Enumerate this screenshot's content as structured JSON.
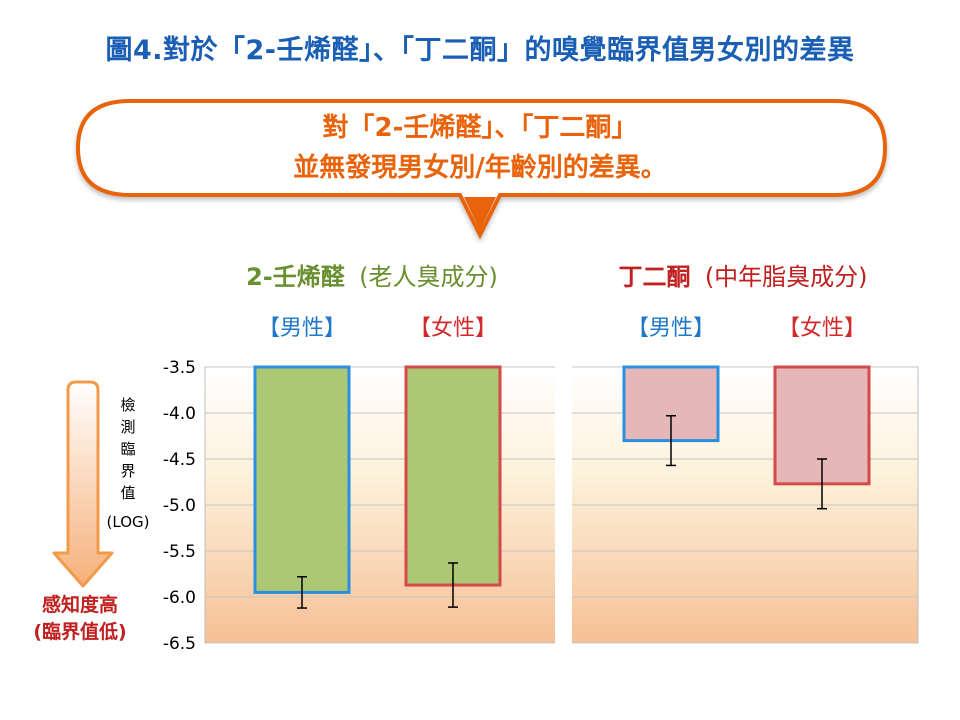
{
  "page": {
    "title": "圖4.對於「2-壬烯醛」、「丁二酮」的嗅覺臨界值男女別的差異"
  },
  "callout": {
    "line1": "對「2-壬烯醛」、「丁二酮」",
    "line2": "並無發現男女別/年齡別的差異。"
  },
  "colors": {
    "title": "#1a5fb4",
    "callout": "#e8630a",
    "nonenal": "#6a8f2e",
    "diacetyl": "#c0201f",
    "male_label": "#1f78c8",
    "female_label": "#d22a2a",
    "green_fill": "#adc874",
    "pink_fill": "#e5b7b8",
    "male_border": "#2a8fe0",
    "female_border": "#d44a4a"
  },
  "chart_data": {
    "type": "bar",
    "ylabel_chars": [
      "檢",
      "測",
      "臨",
      "界",
      "值"
    ],
    "ylabel_unit": "(LOG)",
    "ylim": [
      -6.5,
      -3.5
    ],
    "yticks": [
      -3.5,
      -4.0,
      -4.5,
      -5.0,
      -5.5,
      -6.0,
      -6.5
    ],
    "ytick_labels": [
      "-3.5",
      "-4.0",
      "-4.5",
      "-5.0",
      "-5.5",
      "-6.0",
      "-6.5"
    ],
    "grid": true,
    "sensitivity_label": [
      "感知度高",
      "(臨界值低)"
    ],
    "groups": [
      {
        "name": "2-壬烯醛",
        "subtitle": "(老人臭成分)",
        "bars": [
          {
            "label": "【男性】",
            "sex": "male",
            "value": -5.95,
            "err": 0.17
          },
          {
            "label": "【女性】",
            "sex": "female",
            "value": -5.87,
            "err": 0.24
          }
        ]
      },
      {
        "name": "丁二酮",
        "subtitle": "(中年脂臭成分)",
        "bars": [
          {
            "label": "【男性】",
            "sex": "male",
            "value": -4.3,
            "err": 0.27
          },
          {
            "label": "【女性】",
            "sex": "female",
            "value": -4.77,
            "err": 0.27
          }
        ]
      }
    ]
  }
}
